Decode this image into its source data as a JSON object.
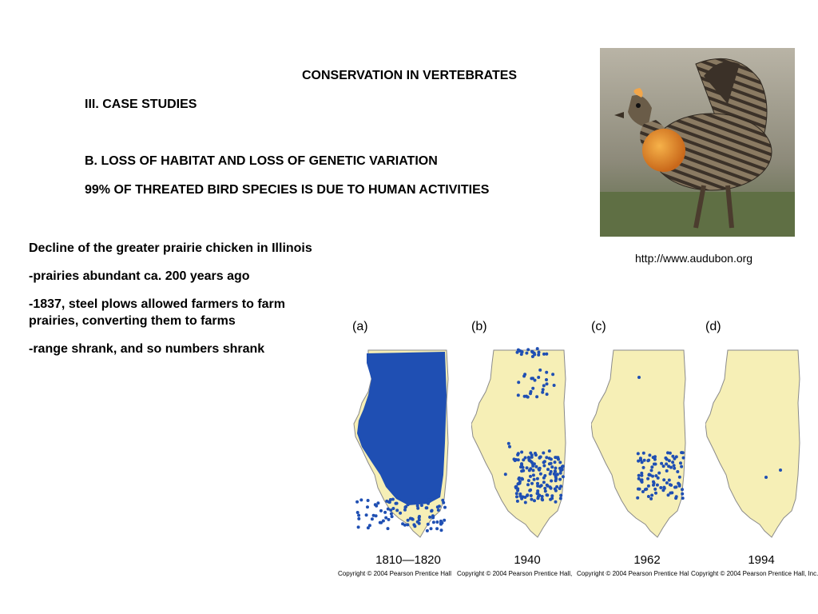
{
  "slide": {
    "title": "CONSERVATION IN VERTEBRATES",
    "section": "III. CASE STUDIES",
    "subsection": "B. LOSS OF HABITAT AND LOSS OF GENETIC VARIATION",
    "statement": "99% OF THREATED BIRD SPECIES IS DUE TO HUMAN ACTIVITIES"
  },
  "bullets": [
    "Decline of the greater prairie chicken in Illinois",
    "-prairies abundant ca. 200 years ago",
    "-1837, steel plows allowed farmers to farm prairies, converting them to farms",
    "-range shrank, and so numbers shrank"
  ],
  "photo": {
    "subject": "greater prairie chicken",
    "credit": "http://www.audubon.org"
  },
  "maps": [
    {
      "label": "(a)",
      "period": "1810—1820",
      "copyright": "Copyright © 2004 Pearson Prentice Hall"
    },
    {
      "label": "(b)",
      "period": "1940",
      "copyright": "Copyright © 2004 Pearson Prentice Hall,"
    },
    {
      "label": "(c)",
      "period": "1962",
      "copyright": "Copyright © 2004 Pearson Prentice Hal"
    },
    {
      "label": "(d)",
      "period": "1994",
      "copyright": "Copyright © 2004 Pearson Prentice Hall, Inc."
    }
  ],
  "colors": {
    "map_fill": "#f6efb6",
    "map_stroke": "#8a8a8a",
    "dot": "#1f4fb3"
  }
}
